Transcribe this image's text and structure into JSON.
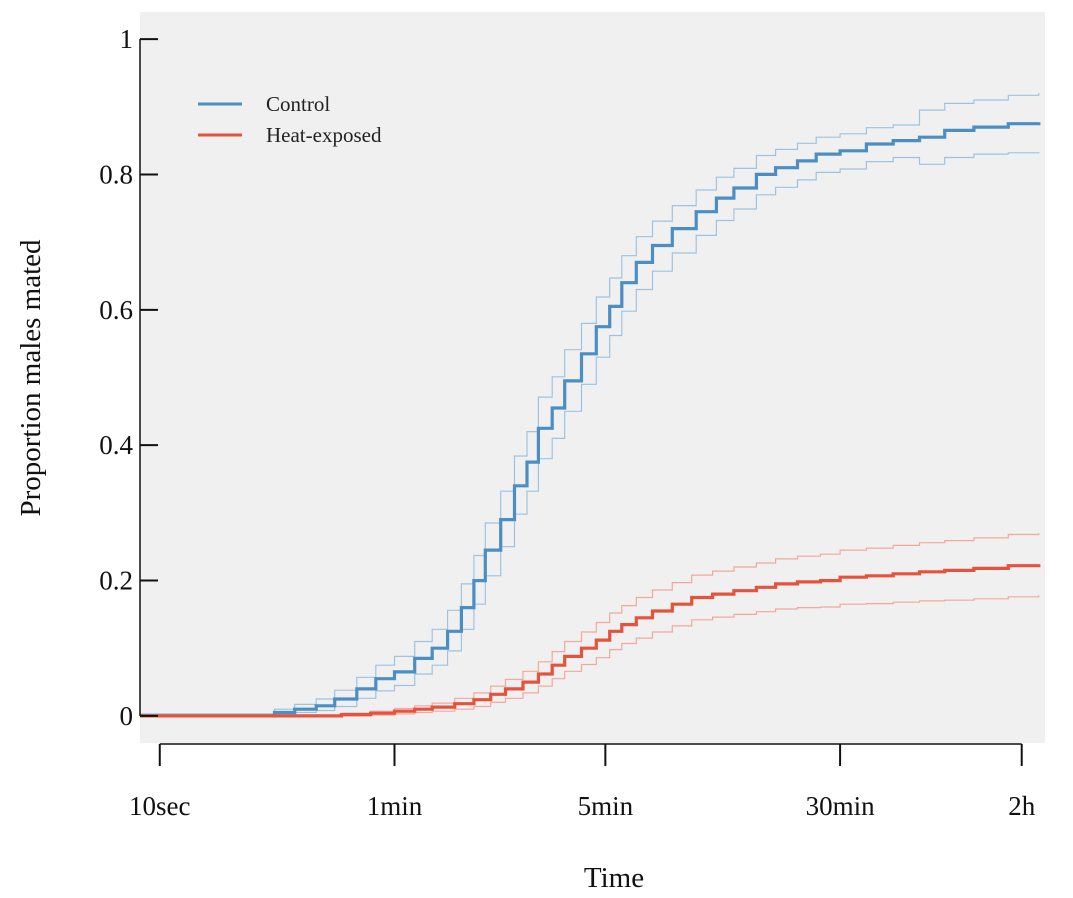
{
  "chart_data": {
    "type": "line",
    "step": true,
    "title": "",
    "xlabel": "Time",
    "ylabel": "Proportion males mated",
    "x_scale": "log",
    "x_units": "seconds",
    "xlim": [
      8.6,
      8600
    ],
    "ylim": [
      -0.04,
      1.04
    ],
    "x_ticks": [
      {
        "value": 10,
        "label": "10sec"
      },
      {
        "value": 60,
        "label": "1min"
      },
      {
        "value": 300,
        "label": "5min"
      },
      {
        "value": 1800,
        "label": "30min"
      },
      {
        "value": 7200,
        "label": "2h"
      }
    ],
    "y_ticks": [
      {
        "value": 0,
        "label": "0"
      },
      {
        "value": 0.2,
        "label": "0.2"
      },
      {
        "value": 0.4,
        "label": "0.4"
      },
      {
        "value": 0.6,
        "label": "0.6"
      },
      {
        "value": 0.8,
        "label": "0.8"
      },
      {
        "value": 1,
        "label": "1"
      }
    ],
    "background": "#f0f0f0",
    "grid": false,
    "legend_position": "top-left",
    "series": [
      {
        "name": "Control",
        "color": "#4b8ec4",
        "ci_color": "#9ec3e2",
        "x": [
          8.6,
          20,
          24,
          28,
          33,
          38,
          45,
          52,
          60,
          70,
          80,
          90,
          100,
          110,
          120,
          135,
          150,
          165,
          180,
          200,
          220,
          250,
          280,
          310,
          340,
          380,
          430,
          500,
          600,
          700,
          800,
          950,
          1100,
          1300,
          1500,
          1800,
          2200,
          2700,
          3300,
          4000,
          5000,
          6500,
          8200
        ],
        "y": [
          0.0,
          0.0,
          0.005,
          0.01,
          0.015,
          0.025,
          0.04,
          0.055,
          0.065,
          0.085,
          0.1,
          0.125,
          0.16,
          0.2,
          0.245,
          0.29,
          0.34,
          0.375,
          0.425,
          0.455,
          0.495,
          0.535,
          0.575,
          0.605,
          0.64,
          0.67,
          0.695,
          0.72,
          0.745,
          0.765,
          0.78,
          0.8,
          0.81,
          0.82,
          0.83,
          0.835,
          0.845,
          0.85,
          0.855,
          0.865,
          0.87,
          0.875,
          0.877
        ],
        "ci_upper": [
          0.003,
          0.003,
          0.01,
          0.017,
          0.025,
          0.038,
          0.057,
          0.075,
          0.088,
          0.11,
          0.128,
          0.156,
          0.195,
          0.237,
          0.285,
          0.332,
          0.384,
          0.42,
          0.471,
          0.501,
          0.541,
          0.58,
          0.619,
          0.647,
          0.68,
          0.708,
          0.731,
          0.754,
          0.777,
          0.796,
          0.809,
          0.828,
          0.837,
          0.846,
          0.855,
          0.86,
          0.869,
          0.873,
          0.895,
          0.905,
          0.91,
          0.917,
          0.92
        ],
        "ci_lower": [
          0.0,
          0.0,
          0.002,
          0.005,
          0.008,
          0.014,
          0.026,
          0.037,
          0.045,
          0.062,
          0.075,
          0.096,
          0.128,
          0.165,
          0.207,
          0.25,
          0.298,
          0.332,
          0.38,
          0.41,
          0.45,
          0.49,
          0.53,
          0.562,
          0.598,
          0.63,
          0.657,
          0.684,
          0.71,
          0.732,
          0.749,
          0.77,
          0.781,
          0.792,
          0.803,
          0.808,
          0.819,
          0.825,
          0.815,
          0.825,
          0.83,
          0.832,
          0.833
        ]
      },
      {
        "name": "Heat-exposed",
        "color": "#e5533d",
        "ci_color": "#f3a89c",
        "x": [
          8.6,
          30,
          40,
          50,
          60,
          70,
          80,
          95,
          110,
          125,
          140,
          160,
          180,
          200,
          220,
          250,
          280,
          310,
          340,
          380,
          430,
          500,
          580,
          680,
          800,
          950,
          1100,
          1300,
          1550,
          1800,
          2200,
          2700,
          3300,
          4000,
          5000,
          6500,
          8200
        ],
        "y": [
          0.0,
          0.0,
          0.002,
          0.004,
          0.007,
          0.01,
          0.013,
          0.018,
          0.024,
          0.032,
          0.04,
          0.05,
          0.062,
          0.075,
          0.088,
          0.1,
          0.112,
          0.125,
          0.135,
          0.145,
          0.155,
          0.165,
          0.175,
          0.18,
          0.185,
          0.19,
          0.195,
          0.198,
          0.2,
          0.205,
          0.207,
          0.21,
          0.213,
          0.215,
          0.218,
          0.222,
          0.224
        ],
        "ci_upper": [
          0.001,
          0.001,
          0.004,
          0.007,
          0.011,
          0.015,
          0.019,
          0.026,
          0.034,
          0.044,
          0.054,
          0.066,
          0.08,
          0.095,
          0.11,
          0.124,
          0.138,
          0.152,
          0.163,
          0.175,
          0.186,
          0.197,
          0.208,
          0.214,
          0.22,
          0.226,
          0.232,
          0.236,
          0.239,
          0.245,
          0.248,
          0.252,
          0.256,
          0.259,
          0.263,
          0.268,
          0.27
        ],
        "ci_lower": [
          0.0,
          0.0,
          0.0,
          0.001,
          0.003,
          0.005,
          0.007,
          0.01,
          0.014,
          0.02,
          0.026,
          0.034,
          0.044,
          0.055,
          0.066,
          0.076,
          0.086,
          0.098,
          0.107,
          0.115,
          0.124,
          0.133,
          0.142,
          0.146,
          0.15,
          0.154,
          0.158,
          0.16,
          0.161,
          0.165,
          0.166,
          0.168,
          0.17,
          0.171,
          0.173,
          0.176,
          0.178
        ]
      }
    ]
  }
}
